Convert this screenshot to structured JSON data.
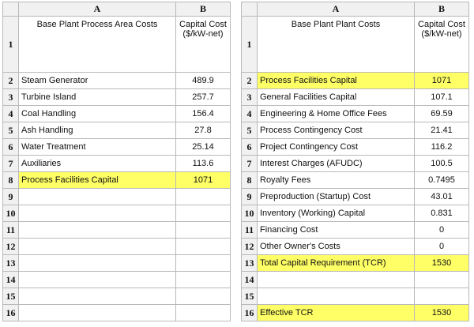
{
  "highlight_color": "#ffff66",
  "left": {
    "columns": [
      "A",
      "B"
    ],
    "header": {
      "a": "Base Plant Process Area Costs",
      "b": "Capital Cost ($/kW-net)"
    },
    "rows": [
      {
        "num": "2",
        "label": "Steam Generator",
        "value": "489.9",
        "highlight": false
      },
      {
        "num": "3",
        "label": "Turbine Island",
        "value": "257.7",
        "highlight": false
      },
      {
        "num": "4",
        "label": "Coal Handling",
        "value": "156.4",
        "highlight": false
      },
      {
        "num": "5",
        "label": "Ash Handling",
        "value": "27.8",
        "highlight": false
      },
      {
        "num": "6",
        "label": "Water Treatment",
        "value": "25.14",
        "highlight": false
      },
      {
        "num": "7",
        "label": "Auxiliaries",
        "value": "113.6",
        "highlight": false
      },
      {
        "num": "8",
        "label": "Process Facilities Capital",
        "value": "1071",
        "highlight": true
      },
      {
        "num": "9",
        "label": "",
        "value": "",
        "highlight": false
      },
      {
        "num": "10",
        "label": "",
        "value": "",
        "highlight": false
      },
      {
        "num": "11",
        "label": "",
        "value": "",
        "highlight": false
      },
      {
        "num": "12",
        "label": "",
        "value": "",
        "highlight": false
      },
      {
        "num": "13",
        "label": "",
        "value": "",
        "highlight": false
      },
      {
        "num": "14",
        "label": "",
        "value": "",
        "highlight": false
      },
      {
        "num": "15",
        "label": "",
        "value": "",
        "highlight": false
      },
      {
        "num": "16",
        "label": "",
        "value": "",
        "highlight": false
      }
    ]
  },
  "right": {
    "columns": [
      "A",
      "B"
    ],
    "header": {
      "a": "Base Plant Plant Costs",
      "b": "Capital Cost ($/kW-net)"
    },
    "rows": [
      {
        "num": "2",
        "label": "Process Facilities Capital",
        "value": "1071",
        "highlight": true
      },
      {
        "num": "3",
        "label": "General Facilities Capital",
        "value": "107.1",
        "highlight": false
      },
      {
        "num": "4",
        "label": "Engineering & Home Office Fees",
        "value": "69.59",
        "highlight": false
      },
      {
        "num": "5",
        "label": "Process Contingency Cost",
        "value": "21.41",
        "highlight": false
      },
      {
        "num": "6",
        "label": "Project Contingency Cost",
        "value": "116.2",
        "highlight": false
      },
      {
        "num": "7",
        "label": "Interest Charges (AFUDC)",
        "value": "100.5",
        "highlight": false
      },
      {
        "num": "8",
        "label": "Royalty Fees",
        "value": "0.7495",
        "highlight": false
      },
      {
        "num": "9",
        "label": "Preproduction (Startup) Cost",
        "value": "43.01",
        "highlight": false
      },
      {
        "num": "10",
        "label": "Inventory (Working) Capital",
        "value": "0.831",
        "highlight": false
      },
      {
        "num": "11",
        "label": "Financing Cost",
        "value": "0",
        "highlight": false
      },
      {
        "num": "12",
        "label": "Other Owner's Costs",
        "value": "0",
        "highlight": false
      },
      {
        "num": "13",
        "label": "Total Capital Requirement (TCR)",
        "value": "1530",
        "highlight": true
      },
      {
        "num": "14",
        "label": "",
        "value": "",
        "highlight": false
      },
      {
        "num": "15",
        "label": "",
        "value": "",
        "highlight": false
      },
      {
        "num": "16",
        "label": "Effective TCR",
        "value": "1530",
        "highlight": true
      }
    ]
  }
}
